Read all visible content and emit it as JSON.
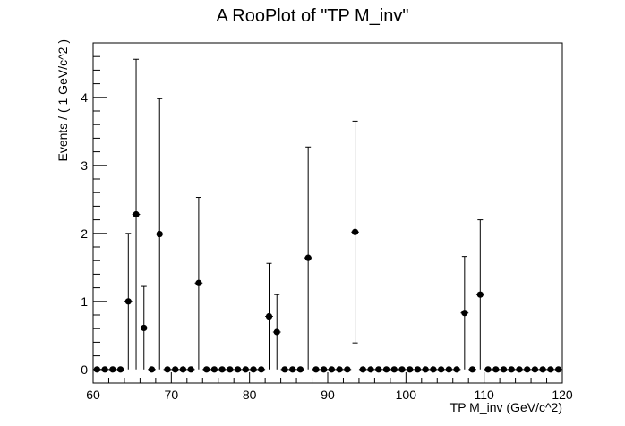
{
  "chart_data": {
    "type": "scatter",
    "title": "A RooPlot of \"TP M_inv\"",
    "xlabel": "TP M_inv (GeV/c^2)",
    "ylabel": "Events / ( 1 GeV/c^2 )",
    "xlim": [
      60,
      120
    ],
    "ylim": [
      -0.2,
      4.8
    ],
    "grid": false,
    "legend": "none",
    "bin_width": 1,
    "x_ticks": [
      60,
      70,
      80,
      90,
      100,
      110,
      120
    ],
    "y_ticks": [
      0,
      1,
      2,
      3,
      4
    ],
    "x_tick_labels": [
      "60",
      "70",
      "80",
      "90",
      "100",
      "110",
      "120"
    ],
    "y_tick_labels": [
      "0",
      "1",
      "2",
      "3",
      "4"
    ],
    "series": [
      {
        "color": "#000000",
        "points": [
          {
            "x": 60.5,
            "y": 0
          },
          {
            "x": 61.5,
            "y": 0
          },
          {
            "x": 62.5,
            "y": 0
          },
          {
            "x": 63.5,
            "y": 0
          },
          {
            "x": 64.5,
            "y": 1.0,
            "ylo": 0,
            "yhi": 2.0
          },
          {
            "x": 65.5,
            "y": 2.28,
            "ylo": 0,
            "yhi": 4.56
          },
          {
            "x": 66.5,
            "y": 0.61,
            "ylo": 0,
            "yhi": 1.22
          },
          {
            "x": 67.5,
            "y": 0
          },
          {
            "x": 68.5,
            "y": 1.99,
            "ylo": 0,
            "yhi": 3.98
          },
          {
            "x": 69.5,
            "y": 0
          },
          {
            "x": 70.5,
            "y": 0
          },
          {
            "x": 71.5,
            "y": 0
          },
          {
            "x": 72.5,
            "y": 0
          },
          {
            "x": 73.5,
            "y": 1.27,
            "ylo": 0,
            "yhi": 2.53
          },
          {
            "x": 74.5,
            "y": 0
          },
          {
            "x": 75.5,
            "y": 0
          },
          {
            "x": 76.5,
            "y": 0
          },
          {
            "x": 77.5,
            "y": 0
          },
          {
            "x": 78.5,
            "y": 0
          },
          {
            "x": 79.5,
            "y": 0
          },
          {
            "x": 80.5,
            "y": 0
          },
          {
            "x": 81.5,
            "y": 0
          },
          {
            "x": 82.5,
            "y": 0.78,
            "ylo": 0,
            "yhi": 1.56
          },
          {
            "x": 83.5,
            "y": 0.55,
            "ylo": 0,
            "yhi": 1.1
          },
          {
            "x": 84.5,
            "y": 0
          },
          {
            "x": 85.5,
            "y": 0
          },
          {
            "x": 86.5,
            "y": 0
          },
          {
            "x": 87.5,
            "y": 1.64,
            "ylo": 0,
            "yhi": 3.27
          },
          {
            "x": 88.5,
            "y": 0
          },
          {
            "x": 89.5,
            "y": 0
          },
          {
            "x": 90.5,
            "y": 0
          },
          {
            "x": 91.5,
            "y": 0
          },
          {
            "x": 92.5,
            "y": 0
          },
          {
            "x": 93.5,
            "y": 2.02,
            "ylo": 0.39,
            "yhi": 3.65
          },
          {
            "x": 94.5,
            "y": 0
          },
          {
            "x": 95.5,
            "y": 0
          },
          {
            "x": 96.5,
            "y": 0
          },
          {
            "x": 97.5,
            "y": 0
          },
          {
            "x": 98.5,
            "y": 0
          },
          {
            "x": 99.5,
            "y": 0
          },
          {
            "x": 100.5,
            "y": 0
          },
          {
            "x": 101.5,
            "y": 0
          },
          {
            "x": 102.5,
            "y": 0
          },
          {
            "x": 103.5,
            "y": 0
          },
          {
            "x": 104.5,
            "y": 0
          },
          {
            "x": 105.5,
            "y": 0
          },
          {
            "x": 106.5,
            "y": 0
          },
          {
            "x": 107.5,
            "y": 0.83,
            "ylo": 0,
            "yhi": 1.66
          },
          {
            "x": 108.5,
            "y": 0
          },
          {
            "x": 109.5,
            "y": 1.1,
            "ylo": 0,
            "yhi": 2.2
          },
          {
            "x": 110.5,
            "y": 0
          },
          {
            "x": 111.5,
            "y": 0
          },
          {
            "x": 112.5,
            "y": 0
          },
          {
            "x": 113.5,
            "y": 0
          },
          {
            "x": 114.5,
            "y": 0
          },
          {
            "x": 115.5,
            "y": 0
          },
          {
            "x": 116.5,
            "y": 0
          },
          {
            "x": 117.5,
            "y": 0
          },
          {
            "x": 118.5,
            "y": 0
          },
          {
            "x": 119.5,
            "y": 0
          }
        ]
      }
    ]
  }
}
